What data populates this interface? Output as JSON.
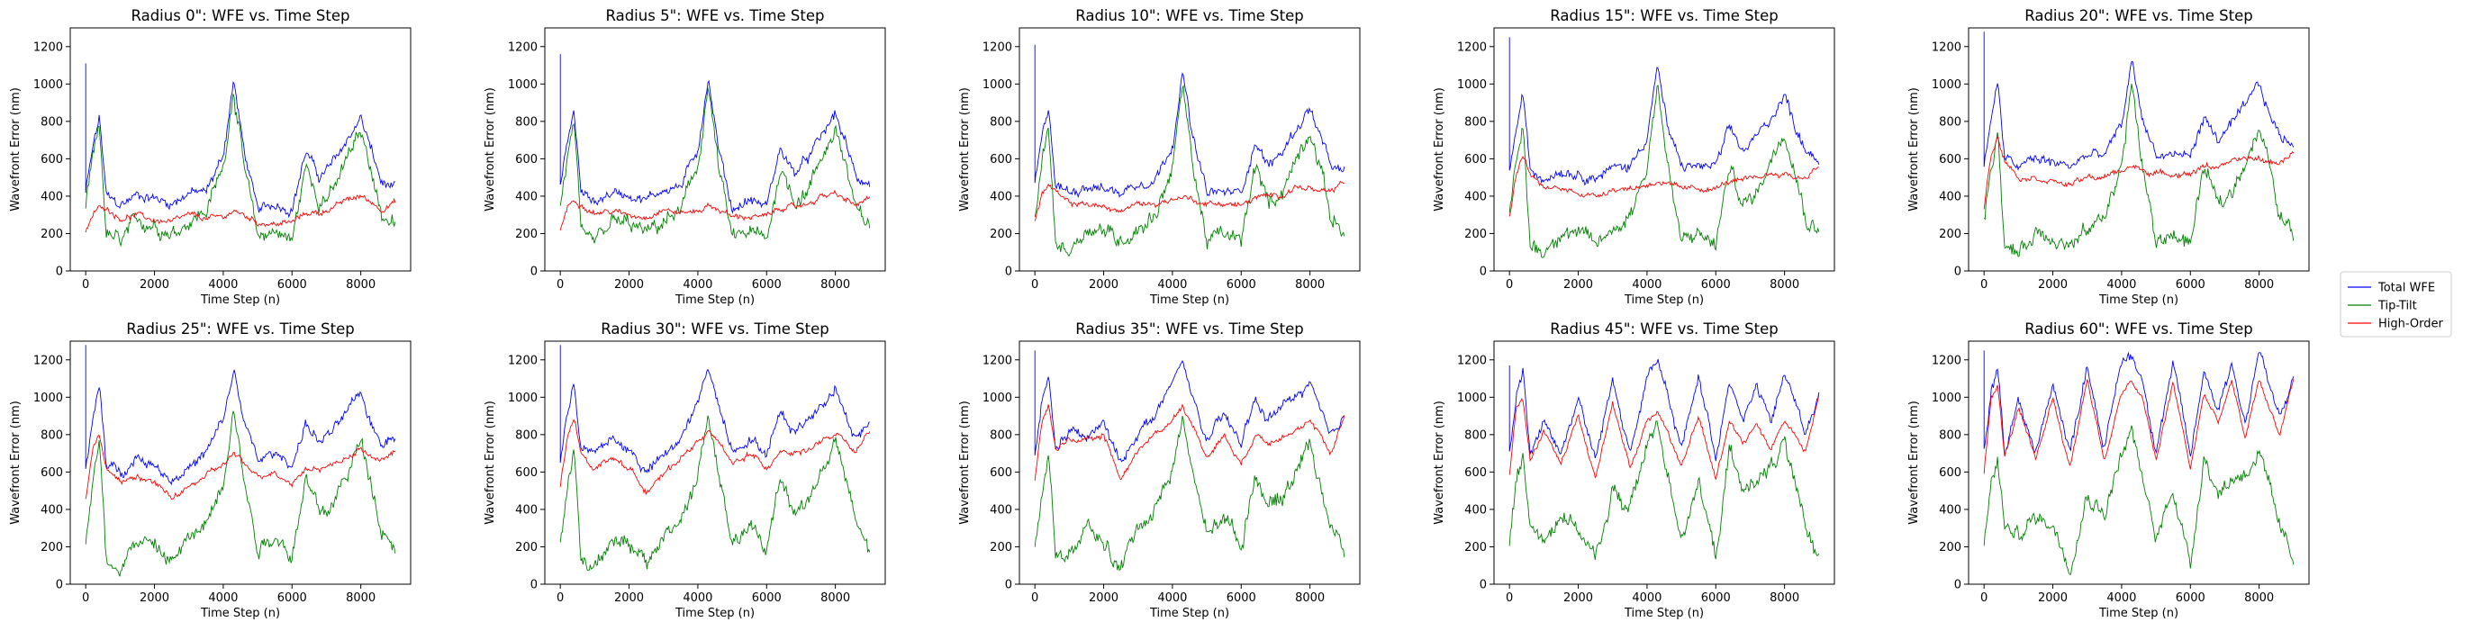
{
  "chart_data": {
    "type": "line",
    "subplot_xlabel": "Time Step (n)",
    "subplot_ylabel": "Wavefront Error (nm)",
    "xlim": [
      -450,
      9450
    ],
    "ylim": [
      0,
      1300
    ],
    "xticks": [
      0,
      2000,
      4000,
      6000,
      8000
    ],
    "yticks": [
      0,
      200,
      400,
      600,
      800,
      1000,
      1200
    ],
    "legend": {
      "placement": "right-center",
      "entries": [
        {
          "name": "Total WFE",
          "color": "#0000ff"
        },
        {
          "name": "Tip-Tilt",
          "color": "#008000"
        },
        {
          "name": "High-Order",
          "color": "#ff0000"
        }
      ]
    },
    "x_samples": [
      0,
      200,
      400,
      600,
      1000,
      1500,
      2000,
      2500,
      3000,
      3500,
      4000,
      4300,
      4600,
      5000,
      5500,
      6000,
      6400,
      6800,
      7200,
      7600,
      8000,
      8300,
      8600,
      9000
    ],
    "subplots": [
      {
        "title": "Radius 0\": WFE vs. Time Step",
        "series": [
          {
            "name": "Total WFE",
            "spike": 1110,
            "values": [
              420,
              650,
              820,
              400,
              350,
              410,
              390,
              360,
              420,
              420,
              620,
              1020,
              650,
              320,
              360,
              330,
              640,
              500,
              580,
              700,
              820,
              650,
              470,
              440
            ]
          },
          {
            "name": "Tip-Tilt",
            "spike": null,
            "values": [
              350,
              600,
              760,
              200,
              150,
              270,
              250,
              200,
              270,
              320,
              560,
              980,
              560,
              180,
              220,
              160,
              560,
              380,
              420,
              600,
              740,
              560,
              300,
              250
            ]
          },
          {
            "name": "High-Order",
            "spike": null,
            "values": [
              200,
              300,
              340,
              340,
              280,
              300,
              270,
              260,
              300,
              280,
              290,
              320,
              300,
              260,
              250,
              260,
              310,
              310,
              340,
              380,
              400,
              370,
              330,
              370
            ]
          }
        ]
      },
      {
        "title": "Radius 5\": WFE vs. Time Step",
        "series": [
          {
            "name": "Total WFE",
            "spike": 1160,
            "values": [
              450,
              680,
              860,
              420,
              370,
              420,
              410,
              380,
              440,
              450,
              650,
              1040,
              660,
              330,
              380,
              350,
              660,
              520,
              600,
              720,
              840,
              680,
              500,
              470
            ]
          },
          {
            "name": "Tip-Tilt",
            "spike": null,
            "values": [
              330,
              600,
              780,
              180,
              150,
              260,
              250,
              200,
              260,
              320,
              560,
              990,
              560,
              170,
              210,
              160,
              560,
              380,
              430,
              610,
              760,
              570,
              310,
              240
            ]
          },
          {
            "name": "High-Order",
            "spike": null,
            "values": [
              220,
              340,
              380,
              360,
              310,
              320,
              300,
              290,
              330,
              310,
              320,
              350,
              330,
              290,
              290,
              290,
              340,
              340,
              360,
              400,
              410,
              380,
              350,
              390
            ]
          }
        ]
      },
      {
        "title": "Radius 10\": WFE vs. Time Step",
        "series": [
          {
            "name": "Total WFE",
            "spike": 1210,
            "values": [
              470,
              700,
              880,
              460,
              420,
              460,
              440,
              420,
              470,
              490,
              680,
              1060,
              700,
              420,
              420,
              420,
              690,
              560,
              640,
              760,
              870,
              720,
              560,
              520
            ]
          },
          {
            "name": "Tip-Tilt",
            "spike": null,
            "values": [
              300,
              580,
              760,
              150,
              110,
              230,
              220,
              160,
              230,
              300,
              560,
              990,
              560,
              160,
              200,
              150,
              560,
              360,
              430,
              600,
              760,
              560,
              290,
              210
            ]
          },
          {
            "name": "High-Order",
            "spike": null,
            "values": [
              260,
              410,
              460,
              420,
              360,
              360,
              340,
              320,
              360,
              360,
              380,
              400,
              380,
              360,
              360,
              350,
              390,
              400,
              410,
              450,
              440,
              420,
              420,
              480
            ]
          }
        ]
      },
      {
        "title": "Radius 15\": WFE vs. Time Step",
        "series": [
          {
            "name": "Total WFE",
            "spike": 1250,
            "values": [
              520,
              760,
              940,
              540,
              500,
              540,
              520,
              500,
              550,
              560,
              720,
              1100,
              760,
              560,
              560,
              560,
              760,
              640,
              720,
              820,
              940,
              780,
              660,
              600
            ]
          },
          {
            "name": "Tip-Tilt",
            "spike": null,
            "values": [
              280,
              560,
              760,
              140,
              100,
              220,
              200,
              140,
              220,
              300,
              560,
              1010,
              560,
              150,
              200,
              140,
              560,
              350,
              420,
              600,
              760,
              560,
              290,
              210
            ]
          },
          {
            "name": "High-Order",
            "spike": null,
            "values": [
              300,
              520,
              620,
              520,
              440,
              440,
              420,
              400,
              440,
              440,
              460,
              480,
              460,
              440,
              440,
              440,
              480,
              480,
              500,
              520,
              520,
              500,
              500,
              560
            ]
          }
        ]
      },
      {
        "title": "Radius 20\": WFE vs. Time Step",
        "series": [
          {
            "name": "Total WFE",
            "spike": 1280,
            "values": [
              560,
              820,
              1000,
              600,
              560,
              600,
              580,
              560,
              620,
              620,
              780,
              1120,
              820,
              620,
              620,
              620,
              820,
              700,
              780,
              880,
              1000,
              840,
              720,
              680
            ]
          },
          {
            "name": "Tip-Tilt",
            "spike": null,
            "values": [
              260,
              560,
              760,
              130,
              90,
              210,
              190,
              130,
              210,
              300,
              560,
              1010,
              560,
              150,
              200,
              140,
              560,
              350,
              420,
              600,
              760,
              560,
              290,
              200
            ]
          },
          {
            "name": "High-Order",
            "spike": null,
            "values": [
              340,
              620,
              720,
              600,
              500,
              500,
              480,
              460,
              500,
              500,
              540,
              560,
              540,
              520,
              520,
              520,
              560,
              560,
              580,
              600,
              600,
              580,
              580,
              640
            ]
          }
        ]
      },
      {
        "title": "Radius 25\": WFE vs. Time Step",
        "series": [
          {
            "name": "Total WFE",
            "spike": 1280,
            "values": [
              600,
              860,
              1060,
              640,
              600,
              680,
              640,
              560,
              620,
              700,
              880,
              1140,
              880,
              660,
              700,
              640,
              860,
              760,
              820,
              920,
              1020,
              860,
              760,
              800
            ]
          },
          {
            "name": "Tip-Tilt",
            "spike": null,
            "values": [
              240,
              540,
              760,
              120,
              100,
              240,
              200,
              120,
              240,
              320,
              560,
              960,
              560,
              200,
              260,
              160,
              560,
              380,
              420,
              600,
              760,
              560,
              300,
              200
            ]
          },
          {
            "name": "High-Order",
            "spike": null,
            "values": [
              460,
              720,
              800,
              620,
              540,
              580,
              540,
              460,
              520,
              580,
              640,
              700,
              640,
              580,
              600,
              540,
              620,
              620,
              640,
              680,
              720,
              680,
              660,
              720
            ]
          }
        ]
      },
      {
        "title": "Radius 30\": WFE vs. Time Step",
        "series": [
          {
            "name": "Total WFE",
            "spike": 1280,
            "values": [
              640,
              900,
              1100,
              720,
              700,
              780,
              720,
              600,
              680,
              780,
              960,
              1180,
              960,
              720,
              780,
              700,
              920,
              820,
              880,
              960,
              1060,
              900,
              780,
              860
            ]
          },
          {
            "name": "Tip-Tilt",
            "spike": null,
            "values": [
              220,
              520,
              740,
              120,
              100,
              260,
              200,
              100,
              260,
              340,
              580,
              900,
              580,
              220,
              300,
              180,
              580,
              400,
              440,
              600,
              760,
              560,
              320,
              180
            ]
          },
          {
            "name": "High-Order",
            "spike": null,
            "values": [
              520,
              780,
              880,
              700,
              620,
              680,
              620,
              500,
              580,
              680,
              760,
              820,
              760,
              640,
              700,
              620,
              720,
              700,
              720,
              760,
              800,
              760,
              700,
              820
            ]
          }
        ]
      },
      {
        "title": "Radius 35\": WFE vs. Time Step",
        "series": [
          {
            "name": "Total WFE",
            "spike": 1250,
            "values": [
              680,
              980,
              1100,
              720,
              820,
              780,
              860,
              640,
              820,
              900,
              1080,
              1180,
              1000,
              760,
              900,
              760,
              980,
              880,
              960,
              1000,
              1080,
              920,
              780,
              900
            ]
          },
          {
            "name": "Tip-Tilt",
            "spike": null,
            "values": [
              220,
              520,
              720,
              160,
              140,
              300,
              220,
              80,
              320,
              400,
              620,
              880,
              600,
              260,
              380,
              200,
              600,
              420,
              460,
              620,
              760,
              540,
              320,
              160
            ]
          },
          {
            "name": "High-Order",
            "spike": null,
            "values": [
              560,
              860,
              960,
              720,
              780,
              760,
              800,
              560,
              720,
              800,
              880,
              960,
              840,
              680,
              800,
              640,
              800,
              760,
              800,
              820,
              860,
              800,
              700,
              900
            ]
          }
        ]
      },
      {
        "title": "Radius 45\": WFE vs. Time Step",
        "series": [
          {
            "name": "Total WFE",
            "spike": 1170,
            "values": [
              700,
              1000,
              1140,
              700,
              880,
              700,
              1000,
              660,
              1100,
              700,
              1100,
              1200,
              1000,
              720,
              1120,
              680,
              1100,
              880,
              1060,
              860,
              1120,
              1000,
              800,
              1000
            ]
          },
          {
            "name": "Tip-Tilt",
            "spike": null,
            "values": [
              220,
              560,
              700,
              300,
              240,
              380,
              300,
              120,
              500,
              400,
              740,
              860,
              600,
              260,
              540,
              140,
              720,
              480,
              580,
              620,
              760,
              500,
              300,
              160
            ]
          },
          {
            "name": "High-Order",
            "spike": null,
            "values": [
              580,
              960,
              1000,
              660,
              820,
              640,
              900,
              560,
              980,
              620,
              880,
              920,
              820,
              620,
              900,
              560,
              880,
              760,
              860,
              720,
              880,
              800,
              700,
              1000
            ]
          }
        ]
      },
      {
        "title": "Radius 60\": WFE vs. Time Step",
        "series": [
          {
            "name": "Total WFE",
            "spike": 1250,
            "values": [
              720,
              1020,
              1160,
              720,
              980,
              700,
              1080,
              700,
              1180,
              720,
              1200,
              1220,
              1100,
              720,
              1180,
              680,
              1140,
              940,
              1180,
              860,
              1260,
              1060,
              880,
              1100
            ]
          },
          {
            "name": "Tip-Tilt",
            "spike": null,
            "values": [
              220,
              540,
              660,
              300,
              260,
              360,
              320,
              100,
              480,
              380,
              700,
              820,
              560,
              240,
              520,
              100,
              700,
              480,
              560,
              600,
              700,
              500,
              300,
              120
            ]
          },
          {
            "name": "High-Order",
            "spike": null,
            "values": [
              600,
              1000,
              1060,
              680,
              940,
              660,
              1000,
              620,
              1100,
              660,
              1020,
              1080,
              1000,
              660,
              1080,
              620,
              1020,
              860,
              1080,
              780,
              1100,
              940,
              800,
              1100
            ]
          }
        ]
      }
    ]
  }
}
